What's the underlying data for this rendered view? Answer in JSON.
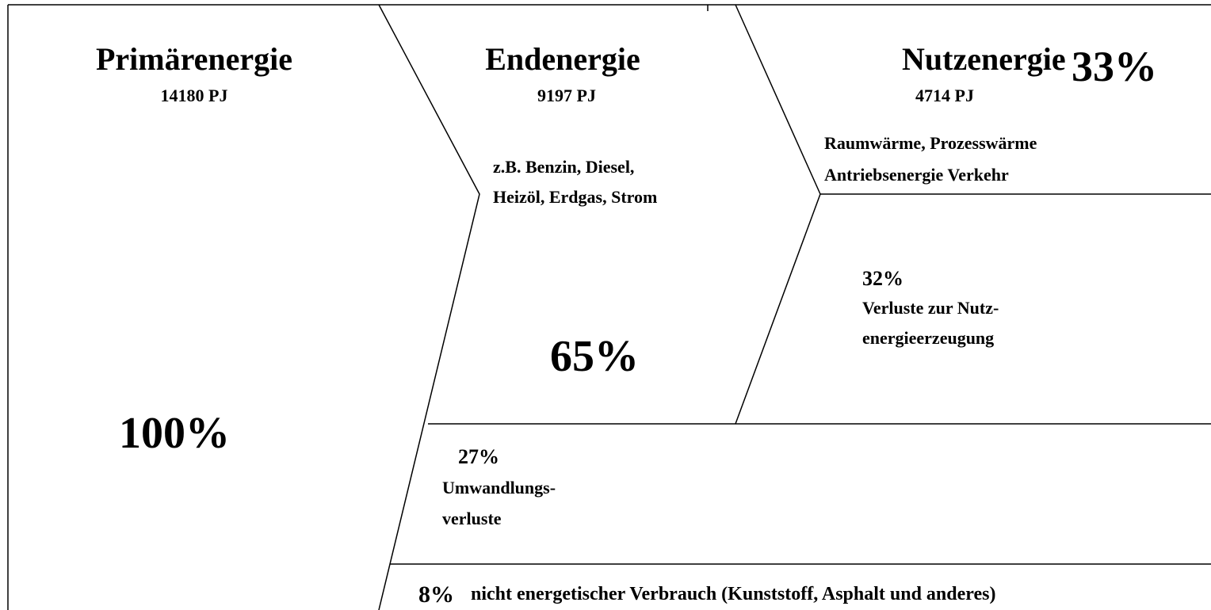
{
  "stages": [
    {
      "title": "Primärenergie",
      "amount": "14180 PJ",
      "share": "100%"
    },
    {
      "title": "Endenergie",
      "amount": "9197 PJ",
      "share": "65%",
      "details": [
        "z.B. Benzin, Diesel,",
        "Heizöl, Erdgas, Strom"
      ]
    },
    {
      "title": "Nutzenergie",
      "amount": "4714 PJ",
      "share": "33%",
      "details": [
        "Raumwärme, Prozesswärme",
        "Antriebsenergie Verkehr"
      ]
    }
  ],
  "losses": [
    {
      "share": "32%",
      "label": [
        "Verluste zur Nutz-",
        "energieerzeugung"
      ]
    },
    {
      "share": "27%",
      "label": [
        "Umwandlungs-",
        "verluste"
      ]
    },
    {
      "share": "8%",
      "label": [
        "nicht energetischer Verbrauch (Kunststoff, Asphalt und anderes)"
      ]
    }
  ]
}
